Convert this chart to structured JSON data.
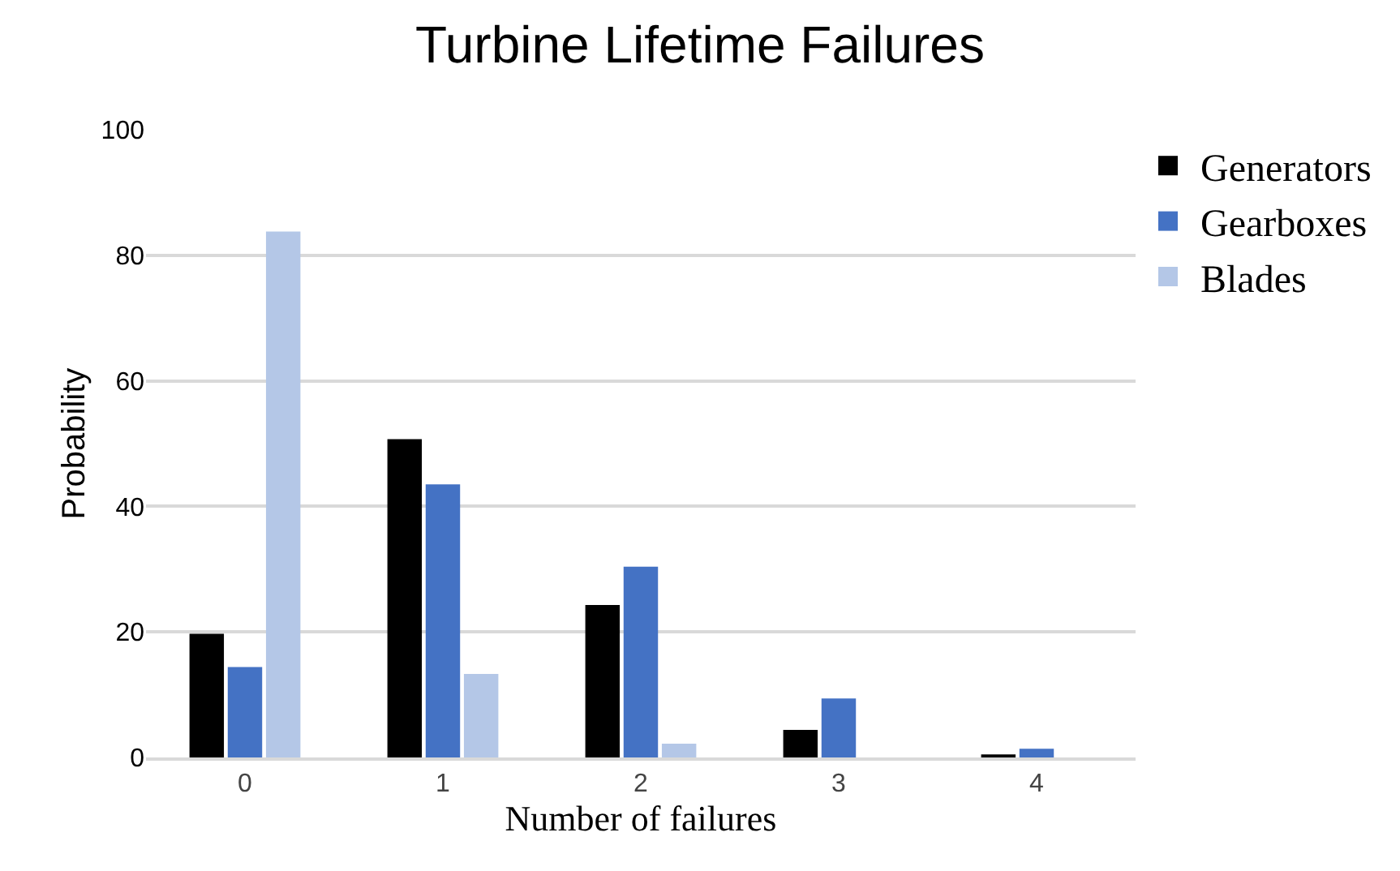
{
  "chart_data": {
    "type": "bar",
    "title": "Turbine Lifetime Failures",
    "xlabel": "Number of failures",
    "ylabel": "Probability",
    "categories": [
      "0",
      "1",
      "2",
      "3",
      "4"
    ],
    "series": [
      {
        "name": "Generators",
        "color": "#000000",
        "values": [
          19.7,
          50.7,
          24.3,
          4.4,
          0.5
        ]
      },
      {
        "name": "Gearboxes",
        "color": "#4472c4",
        "values": [
          14.4,
          43.5,
          30.4,
          9.4,
          1.4
        ]
      },
      {
        "name": "Blades",
        "color": "#b4c7e7",
        "values": [
          83.8,
          13.3,
          2.2,
          0,
          0
        ]
      }
    ],
    "ylim": [
      0,
      100
    ],
    "yticks": [
      0,
      20,
      40,
      60,
      80,
      100
    ],
    "grid": "y",
    "legend": "top right"
  }
}
